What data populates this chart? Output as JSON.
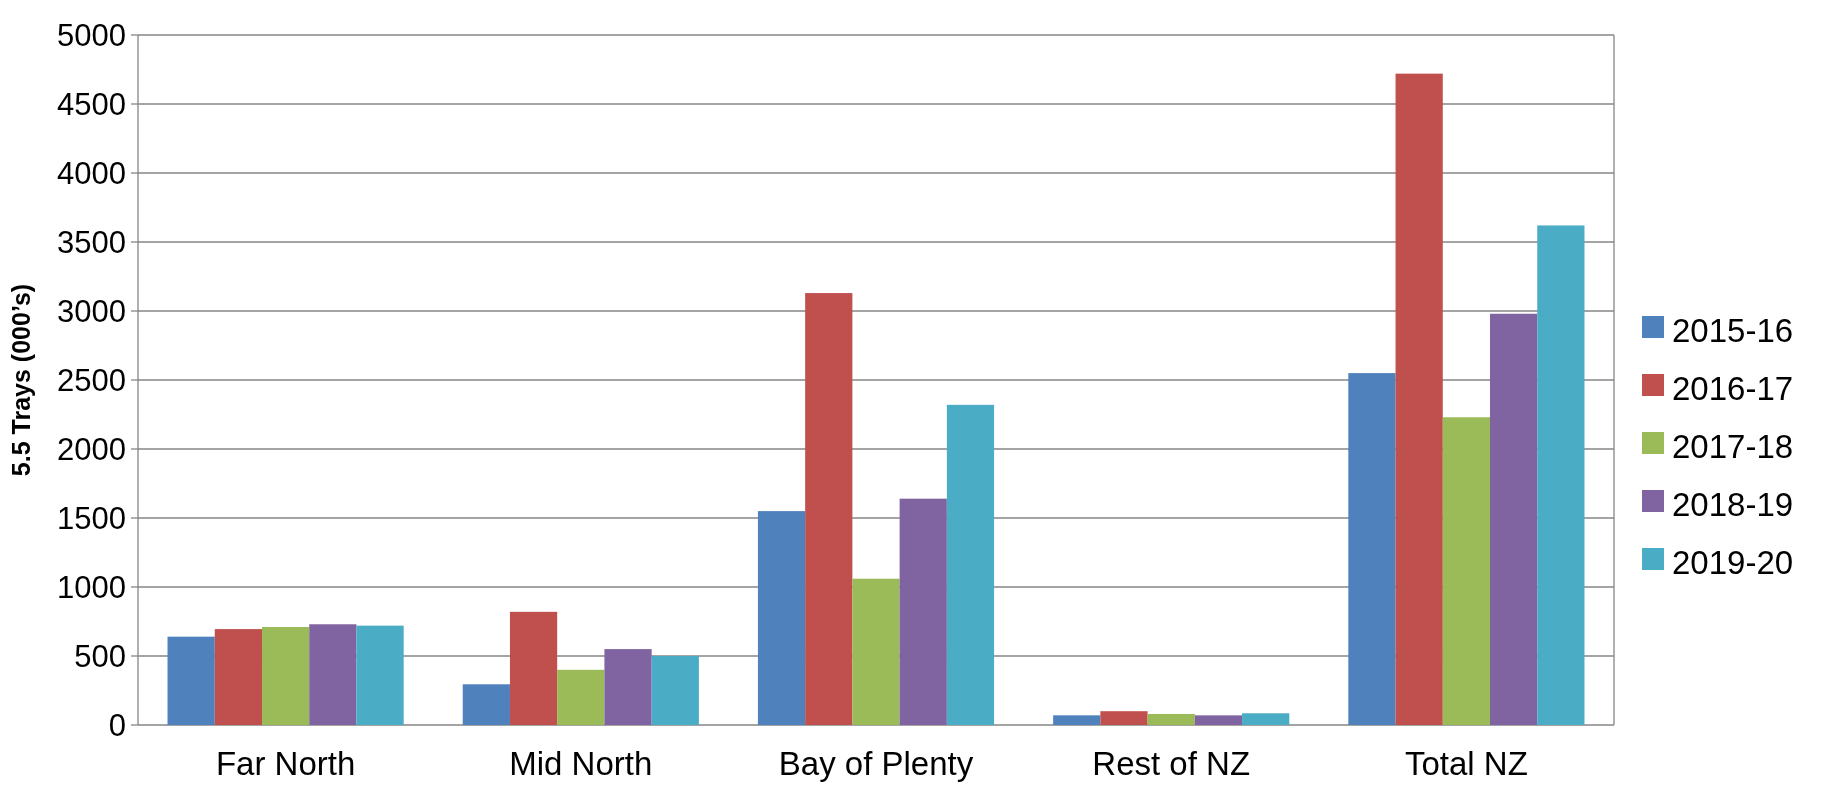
{
  "chart_data": {
    "type": "bar",
    "ylabel": "5.5 Trays (000’s)",
    "categories": [
      "Far North",
      "Mid North",
      "Bay of Plenty",
      "Rest of NZ",
      "Total NZ"
    ],
    "series": [
      {
        "name": "2015-16",
        "color": "#4f81bd",
        "values": [
          640,
          295,
          1550,
          70,
          2550
        ]
      },
      {
        "name": "2016-17",
        "color": "#c0504d",
        "values": [
          695,
          820,
          3130,
          100,
          4720
        ]
      },
      {
        "name": "2017-18",
        "color": "#9bbb59",
        "values": [
          710,
          400,
          1060,
          80,
          2230
        ]
      },
      {
        "name": "2018-19",
        "color": "#8064a2",
        "values": [
          730,
          550,
          1640,
          70,
          2980
        ]
      },
      {
        "name": "2019-20",
        "color": "#4bacc6",
        "values": [
          720,
          500,
          2320,
          85,
          3620
        ]
      }
    ],
    "ylim": [
      0,
      5000
    ],
    "yticks": [
      0,
      500,
      1000,
      1500,
      2000,
      2500,
      3000,
      3500,
      4000,
      4500,
      5000
    ],
    "grid": "y",
    "legend": "right"
  }
}
